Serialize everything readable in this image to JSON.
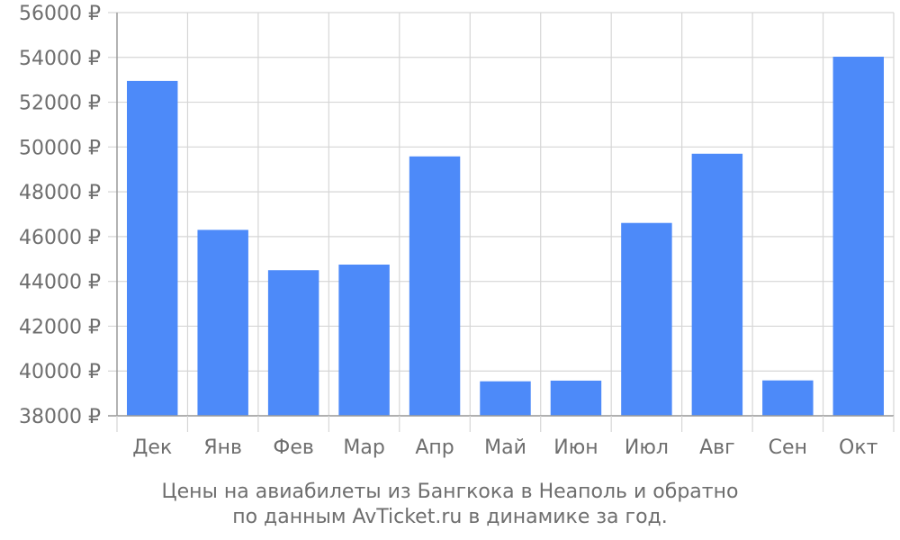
{
  "colors": {
    "bar": "#4d8af9",
    "grid": "#d6d6d6",
    "axis": "#9a9a9a",
    "text": "#6e6e6e"
  },
  "chart_data": {
    "type": "bar",
    "categories": [
      "Дек",
      "Янв",
      "Фев",
      "Мар",
      "Апр",
      "Май",
      "Июн",
      "Июл",
      "Авг",
      "Сен",
      "Окт"
    ],
    "values": [
      52950,
      46300,
      44500,
      44750,
      49580,
      39540,
      39570,
      46610,
      49700,
      39580,
      54030
    ],
    "ylim": [
      38000,
      56000
    ],
    "yticks": [
      38000,
      40000,
      42000,
      44000,
      46000,
      48000,
      50000,
      52000,
      54000,
      56000
    ],
    "ytick_labels": [
      "38000 ₽",
      "40000 ₽",
      "42000 ₽",
      "44000 ₽",
      "46000 ₽",
      "48000 ₽",
      "50000 ₽",
      "52000 ₽",
      "54000 ₽",
      "56000 ₽"
    ],
    "grid": true,
    "title_line1": "Цены на авиабилеты из Бангкока в Неаполь и обратно",
    "title_line2": "по данным AvTicket.ru в динамике за год."
  }
}
